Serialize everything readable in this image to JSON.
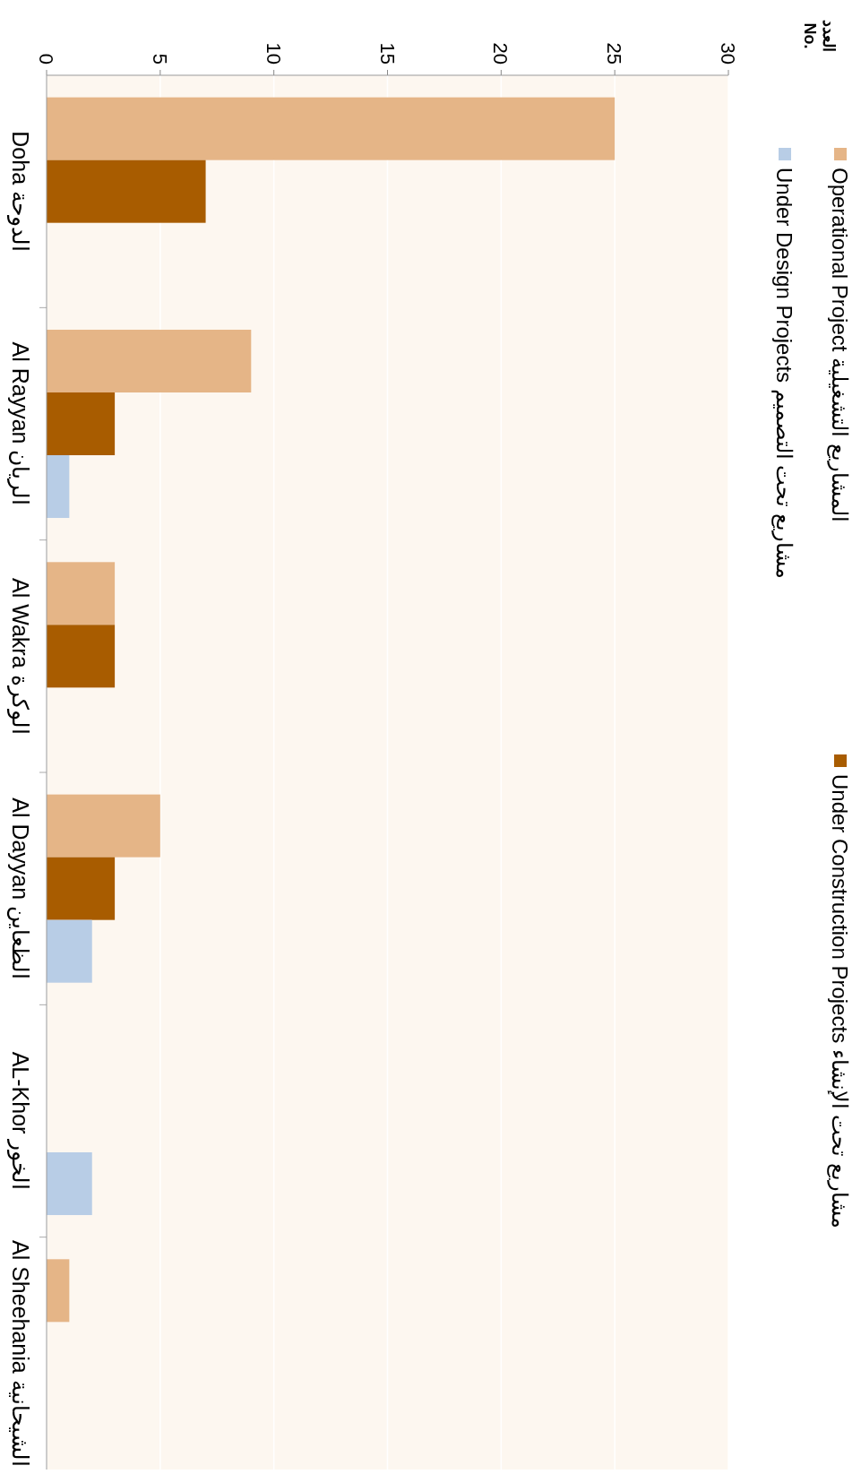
{
  "chart_data": {
    "type": "bar",
    "ylabel": "العدد\nNo.",
    "categories": [
      "Doha الدوحة",
      "Al Rayyan الريان",
      "Al Wakra الوكرة",
      "Al Dayyan الظعاين",
      "AL-Khor الخور",
      "Al Sheehania الشيحانية"
    ],
    "series": [
      {
        "name": "Operational Project المشاريع التشغيلية",
        "color": "#e5b587",
        "values": [
          25,
          9,
          3,
          5,
          null,
          1
        ]
      },
      {
        "name": "Under Construction Projects مشاريع تحت الإنشاء",
        "color": "#a85c00",
        "values": [
          7,
          3,
          3,
          3,
          null,
          null
        ]
      },
      {
        "name": "Under Design Projects مشاريع تحت التصميم",
        "color": "#b8cde6",
        "values": [
          null,
          1,
          null,
          2,
          2,
          null
        ]
      }
    ],
    "orientation": "horizontal",
    "xlim": [
      0,
      30
    ],
    "xticks": [
      0,
      5,
      10,
      15,
      20,
      25,
      30
    ],
    "grid": "x",
    "legend": "right"
  }
}
